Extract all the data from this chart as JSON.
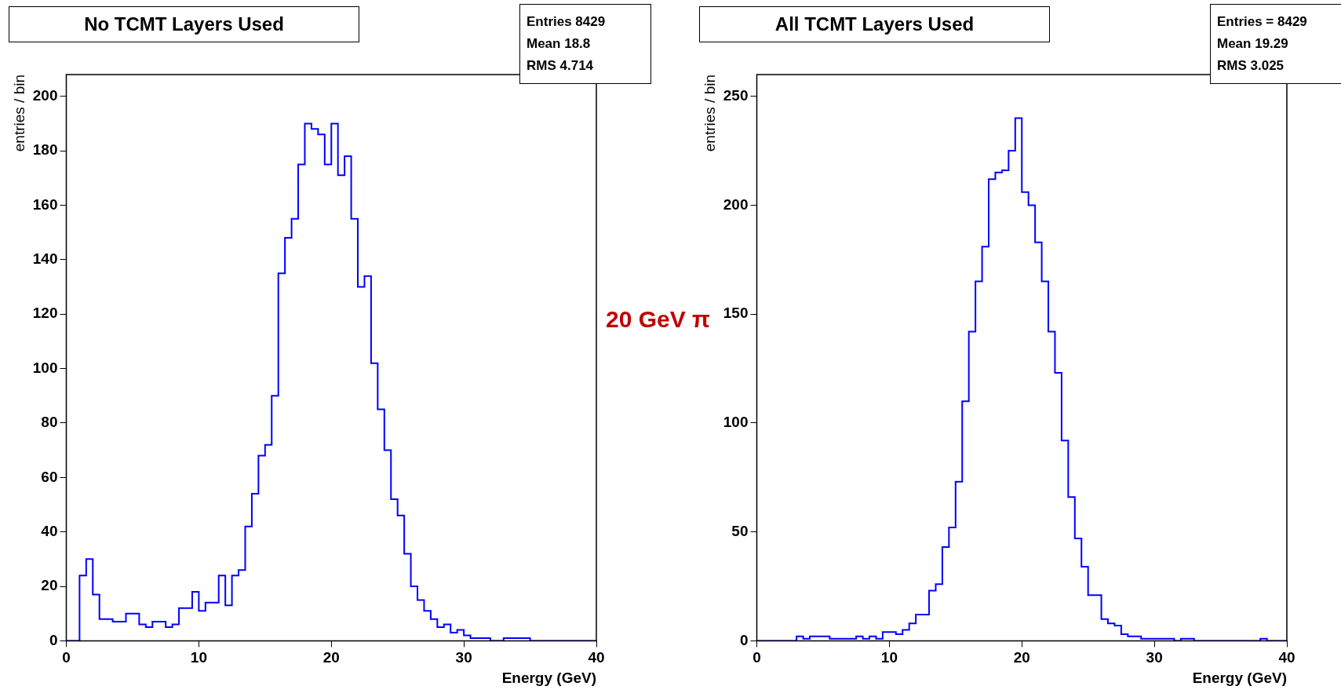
{
  "chart_data": [
    {
      "type": "histogram",
      "title": "No TCMT Layers Used",
      "xlabel": "Energy (GeV)",
      "ylabel": "entries / bin",
      "color": "#0000ff",
      "grid": false,
      "legend": false,
      "annotations": [
        "Entries 8429",
        "Mean 18.8",
        "RMS 4.714"
      ],
      "bins": [
        0,
        0.5,
        1,
        1.5,
        2,
        2.5,
        3,
        3.5,
        4,
        4.5,
        5,
        5.5,
        6,
        6.5,
        7,
        7.5,
        8,
        8.5,
        9,
        9.5,
        10,
        10.5,
        11,
        11.5,
        12,
        12.5,
        13,
        13.5,
        14,
        14.5,
        15,
        15.5,
        16,
        16.5,
        17,
        17.5,
        18,
        18.5,
        19,
        19.5,
        20,
        20.5,
        21,
        21.5,
        22,
        22.5,
        23,
        23.5,
        24,
        24.5,
        25,
        25.5,
        26,
        26.5,
        27,
        27.5,
        28,
        28.5,
        29,
        29.5,
        30,
        30.5,
        31,
        31.5,
        32,
        32.5,
        33,
        33.5,
        34,
        34.5,
        35,
        35.5,
        36,
        36.5,
        37,
        37.5,
        38,
        38.5,
        39,
        39.5,
        40
      ],
      "values": [
        0,
        0,
        24,
        30,
        17,
        8,
        8,
        7,
        7,
        10,
        10,
        6,
        5,
        7,
        7,
        5,
        6,
        12,
        12,
        18,
        11,
        14,
        14,
        24,
        13,
        24,
        26,
        42,
        54,
        68,
        72,
        90,
        135,
        148,
        155,
        175,
        190,
        188,
        186,
        175,
        190,
        171,
        178,
        155,
        130,
        134,
        102,
        85,
        70,
        52,
        46,
        32,
        20,
        15,
        11,
        8,
        5,
        6,
        3,
        4,
        2,
        1,
        1,
        1,
        0,
        0,
        1,
        1,
        1,
        1,
        0,
        0,
        0,
        0,
        0,
        0,
        0,
        0,
        0,
        0
      ],
      "xlim": [
        0,
        40
      ],
      "xticks": [
        0,
        10,
        20,
        30,
        40
      ],
      "ylim": [
        0,
        208
      ],
      "yticks": [
        0,
        20,
        40,
        60,
        80,
        100,
        120,
        140,
        160,
        180,
        200
      ]
    },
    {
      "type": "histogram",
      "title": "All TCMT Layers Used",
      "xlabel": "Energy (GeV)",
      "ylabel": "entries / bin",
      "color": "#0000ff",
      "grid": false,
      "legend": false,
      "annotations": [
        "Entries = 8429",
        "Mean 19.29",
        "RMS 3.025"
      ],
      "bins": [
        0,
        0.5,
        1,
        1.5,
        2,
        2.5,
        3,
        3.5,
        4,
        4.5,
        5,
        5.5,
        6,
        6.5,
        7,
        7.5,
        8,
        8.5,
        9,
        9.5,
        10,
        10.5,
        11,
        11.5,
        12,
        12.5,
        13,
        13.5,
        14,
        14.5,
        15,
        15.5,
        16,
        16.5,
        17,
        17.5,
        18,
        18.5,
        19,
        19.5,
        20,
        20.5,
        21,
        21.5,
        22,
        22.5,
        23,
        23.5,
        24,
        24.5,
        25,
        25.5,
        26,
        26.5,
        27,
        27.5,
        28,
        28.5,
        29,
        29.5,
        30,
        30.5,
        31,
        31.5,
        32,
        32.5,
        33,
        33.5,
        34,
        34.5,
        35,
        35.5,
        36,
        36.5,
        37,
        37.5,
        38,
        38.5,
        39,
        39.5,
        40
      ],
      "values": [
        0,
        0,
        0,
        0,
        0,
        0,
        2,
        1,
        2,
        2,
        2,
        1,
        1,
        1,
        1,
        2,
        1,
        2,
        1,
        4,
        4,
        3,
        5,
        8,
        12,
        12,
        23,
        26,
        43,
        52,
        73,
        110,
        142,
        165,
        181,
        212,
        215,
        216,
        225,
        240,
        206,
        200,
        183,
        165,
        142,
        123,
        92,
        66,
        47,
        34,
        21,
        21,
        10,
        8,
        7,
        3,
        2,
        2,
        1,
        1,
        1,
        1,
        1,
        0,
        1,
        1,
        0,
        0,
        0,
        0,
        0,
        0,
        0,
        0,
        0,
        0,
        1,
        0,
        0,
        0
      ],
      "xlim": [
        0,
        40
      ],
      "xticks": [
        0,
        10,
        20,
        30,
        40
      ],
      "ylim": [
        0,
        260
      ],
      "yticks": [
        0,
        50,
        100,
        150,
        200,
        250
      ]
    },
    {
      "type": "other",
      "title": "20 GeV π",
      "color": "#c00000"
    }
  ]
}
